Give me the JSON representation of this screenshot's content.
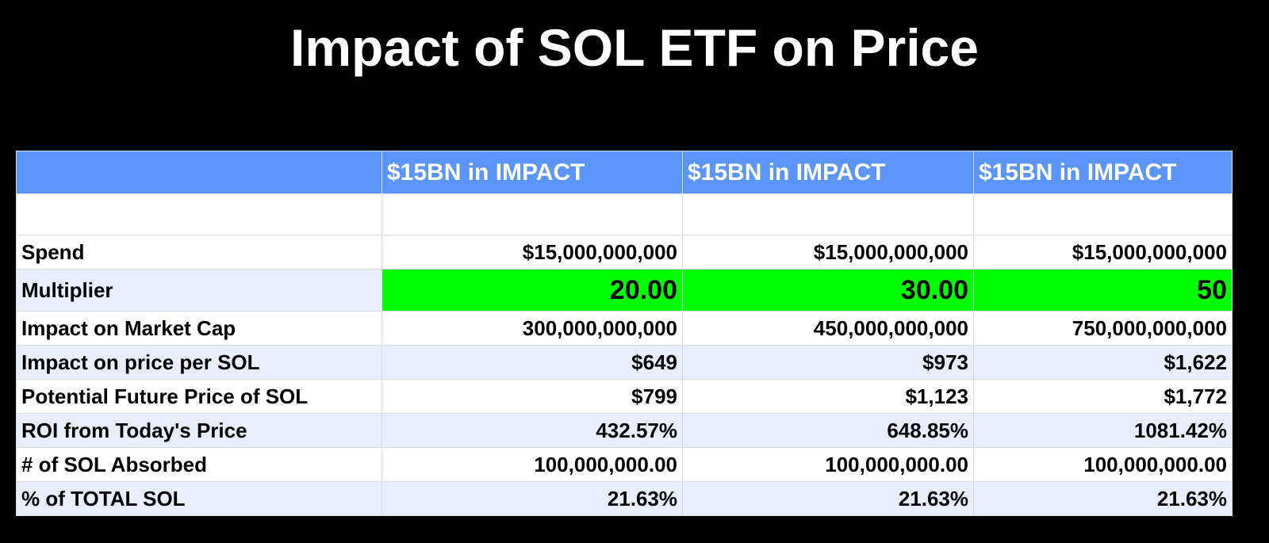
{
  "header": {
    "title": "Impact of SOL ETF on Price"
  },
  "table": {
    "columns": [
      "$15BN in IMPACT",
      "$15BN in IMPACT",
      "$15BN in IMPACT"
    ],
    "rows": [
      {
        "label": "Spend",
        "values": [
          "$15,000,000,000",
          "$15,000,000,000",
          "$15,000,000,000"
        ]
      },
      {
        "label": "Multiplier",
        "values": [
          "20.00",
          "30.00",
          "50"
        ],
        "highlight": "#00ff00"
      },
      {
        "label": "Impact on Market Cap",
        "values": [
          "300,000,000,000",
          "450,000,000,000",
          "750,000,000,000"
        ]
      },
      {
        "label": "Impact on price per SOL",
        "values": [
          "$649",
          "$973",
          "$1,622"
        ]
      },
      {
        "label": "Potential Future Price of SOL",
        "values": [
          "$799",
          "$1,123",
          "$1,772"
        ]
      },
      {
        "label": "ROI from Today's Price",
        "values": [
          "432.57%",
          "648.85%",
          "1081.42%"
        ]
      },
      {
        "label": "# of SOL Absorbed",
        "values": [
          "100,000,000.00",
          "100,000,000.00",
          "100,000,000.00"
        ]
      },
      {
        "label": "% of TOTAL SOL",
        "values": [
          "21.63%",
          "21.63%",
          "21.63%"
        ]
      }
    ]
  }
}
